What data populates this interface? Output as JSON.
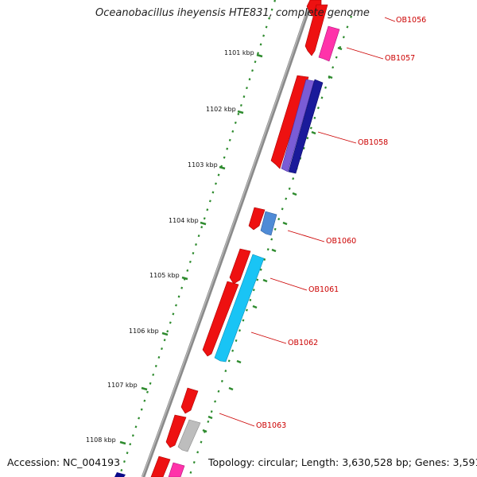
{
  "title": "Oceanobacillus iheyensis HTE831, complete genome",
  "accession": "Accession: NC_004193",
  "topology": "Topology: circular; Length: 3,630,528 bp; Genes: 3,591",
  "scale_labels": [
    "1101 kbp",
    "1102 kbp",
    "1103 kbp",
    "1104 kbp",
    "1105 kbp",
    "1106 kbp",
    "1107 kbp",
    "1108 kbp"
  ],
  "gene_labels": [
    "OB1056",
    "OB1057",
    "OB1058",
    "OB1060",
    "OB1061",
    "OB1062",
    "OB1063"
  ],
  "colors": {
    "backbone": "#777777",
    "scale_ticks": "#2e8b2e",
    "forward_gene": "#ee1111",
    "label_text": "#cc0000"
  }
}
